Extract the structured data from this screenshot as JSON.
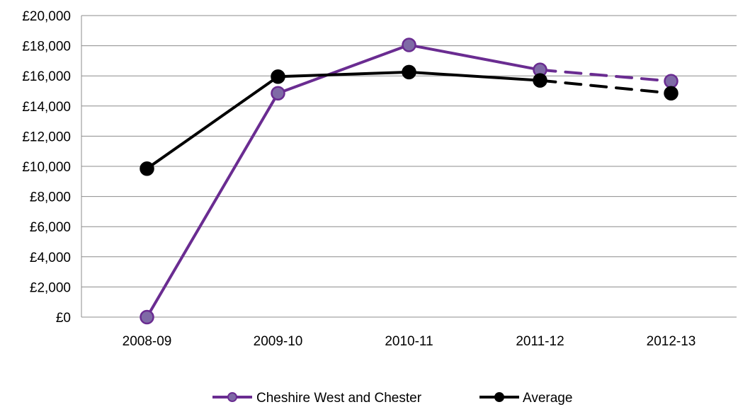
{
  "chart_data": {
    "type": "line",
    "title": "",
    "xlabel": "",
    "ylabel": "",
    "categories": [
      "2008-09",
      "2009-10",
      "2010-11",
      "2011-12",
      "2012-13"
    ],
    "ylim": [
      0,
      20000
    ],
    "yticks": [
      0,
      2000,
      4000,
      6000,
      8000,
      10000,
      12000,
      14000,
      16000,
      18000,
      20000
    ],
    "ytick_labels": [
      "£0",
      "£2,000",
      "£4,000",
      "£6,000",
      "£8,000",
      "£10,000",
      "£12,000",
      "£14,000",
      "£16,000",
      "£18,000",
      "£20,000"
    ],
    "grid": true,
    "legend_position": "bottom",
    "series": [
      {
        "name": "Cheshire West and Chester",
        "values": [
          0,
          14850,
          18050,
          16400,
          15650
        ],
        "color": "#6a2c91",
        "marker_fill": "#7f6aa6",
        "dashed_from_index": 3
      },
      {
        "name": "Average",
        "values": [
          9850,
          15950,
          16250,
          15700,
          14850
        ],
        "color": "#000000",
        "marker_fill": "#000000",
        "dashed_from_index": 3
      }
    ]
  }
}
